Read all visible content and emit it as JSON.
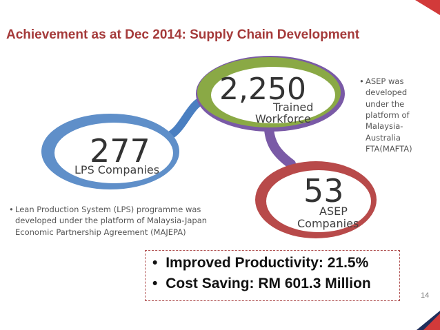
{
  "title": "Achievement as at Dec 2014: Supply Chain Development",
  "lps": {
    "number": "277",
    "label": "LPS Companies"
  },
  "trained": {
    "number": "2,250",
    "label_line1": "Trained",
    "label_line2": "Workforce"
  },
  "asep": {
    "number": "53",
    "label_line1": "ASEP",
    "label_line2": "Companies"
  },
  "notes": {
    "asep_bullet": "•",
    "asep_lines": [
      "ASEP was",
      "developed",
      "under the",
      "platform of",
      "Malaysia-",
      "Australia",
      "FTA(MAFTA)"
    ],
    "lps_bullet": "•",
    "lps_lines": [
      "Lean Production System (LPS) programme was",
      "developed under the platform of Malaysia-Japan",
      "Economic Partnership Agreement (MAJEPA)"
    ]
  },
  "highlights": {
    "bullet": "•",
    "items": [
      "Improved Productivity: 21.5%",
      "Cost Saving: RM 601.3 Million"
    ]
  },
  "page_number": "14",
  "colors": {
    "title": "#a53a3a",
    "blue_ring": "#4a7fc1",
    "green_ring": "#7fa43c",
    "red_ring": "#b84a4a",
    "purple_arrow": "#7a5aa6",
    "highlight_border": "#b05050",
    "corner_navy": "#1f2f5c",
    "corner_red": "#d23a3a"
  }
}
